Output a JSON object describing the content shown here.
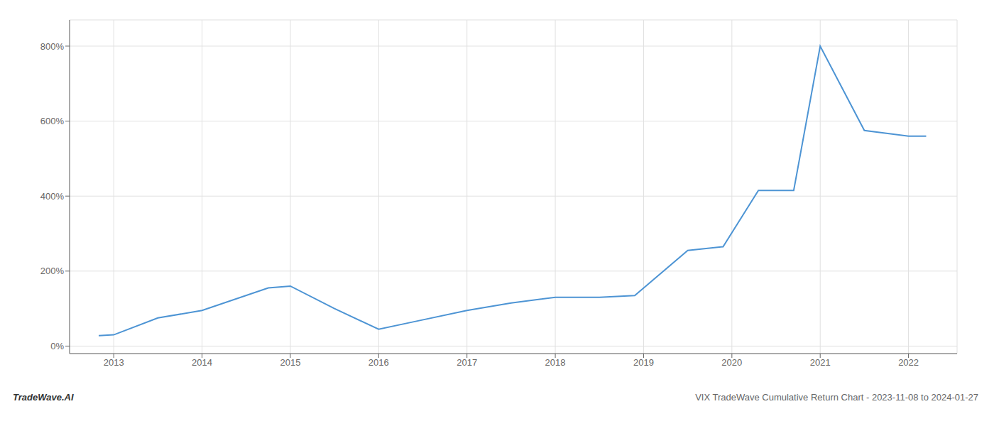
{
  "chart_data": {
    "type": "line",
    "annotations": [
      "TradeWave.AI",
      "VIX TradeWave Cumulative Return Chart - 2023-11-08 to 2024-01-27"
    ],
    "x": [
      2012.83,
      2013.0,
      2013.5,
      2014.0,
      2014.75,
      2015.0,
      2015.5,
      2016.0,
      2016.4,
      2017.0,
      2017.5,
      2018.0,
      2018.5,
      2018.9,
      2019.5,
      2019.9,
      2020.3,
      2020.7,
      2021.0,
      2021.5,
      2022.0,
      2022.2
    ],
    "values": [
      28,
      30,
      75,
      95,
      155,
      160,
      100,
      45,
      65,
      95,
      115,
      130,
      130,
      135,
      255,
      265,
      415,
      415,
      800,
      575,
      560,
      560
    ],
    "color": "#4d94d4",
    "xlim": [
      2012.5,
      2022.55
    ],
    "xticks": [
      2013,
      2014,
      2015,
      2016,
      2017,
      2018,
      2019,
      2020,
      2021,
      2022
    ],
    "ylim": [
      -20,
      870
    ],
    "yticks": [
      {
        "value": 0,
        "label": "0%"
      },
      {
        "value": 200,
        "label": "200%"
      },
      {
        "value": 400,
        "label": "400%"
      },
      {
        "value": 600,
        "label": "600%"
      },
      {
        "value": 800,
        "label": "800%"
      }
    ],
    "grid": true
  }
}
